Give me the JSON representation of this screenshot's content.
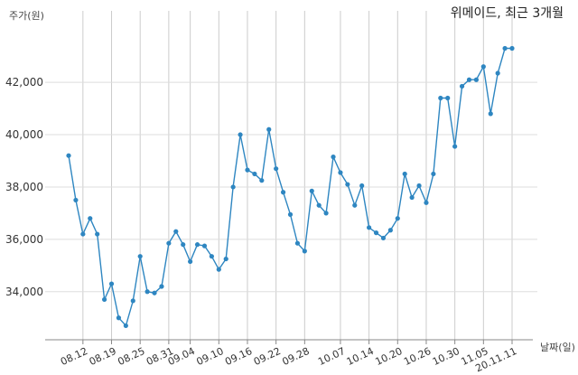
{
  "chart_data": {
    "type": "line",
    "title": "위메이드, 최근 3개월",
    "ylabel": "주가(원)",
    "xlabel": "날짜(일)",
    "ylim": [
      32300,
      43800
    ],
    "yticks": [
      34000,
      36000,
      38000,
      40000,
      42000
    ],
    "ytick_labels": [
      "34,000",
      "36,000",
      "38,000",
      "40,000",
      "42,000"
    ],
    "xtick_labels": [
      "08.12",
      "08.19",
      "08.25",
      "08.31",
      "09.04",
      "09.10",
      "09.16",
      "09.22",
      "09.28",
      "10.07",
      "10.14",
      "10.20",
      "10.26",
      "10.30",
      "11.05",
      "20.11.11"
    ],
    "xtick_index": [
      2,
      6,
      10,
      14,
      17,
      21,
      25,
      29,
      33,
      38,
      42,
      46,
      50,
      54,
      58,
      62
    ],
    "grid": "vertical",
    "color": "#2e86c1",
    "values": [
      39200,
      37500,
      36200,
      36800,
      36200,
      33700,
      34300,
      33000,
      32700,
      33650,
      35350,
      34000,
      33950,
      34200,
      35850,
      36300,
      35800,
      35150,
      35800,
      35750,
      35350,
      34850,
      35250,
      38000,
      40000,
      38650,
      38500,
      38250,
      40200,
      38700,
      37800,
      36950,
      35850,
      35550,
      37850,
      37300,
      37000,
      39150,
      38550,
      38100,
      37300,
      38050,
      36450,
      36250,
      36050,
      36350,
      36800,
      38500,
      37600,
      38050,
      37400,
      38500,
      41400,
      41400,
      39550,
      41850,
      42100,
      42100,
      42600,
      40800,
      42350,
      43300,
      43300
    ]
  }
}
